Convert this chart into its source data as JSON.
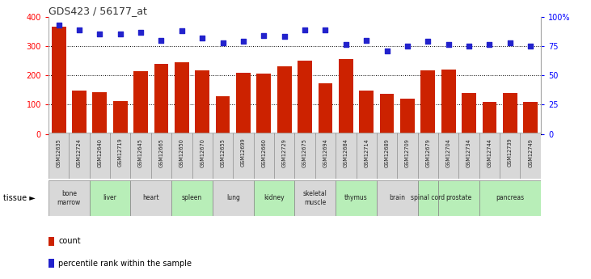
{
  "title": "GDS423 / 56177_at",
  "gsm_labels": [
    "GSM12635",
    "GSM12724",
    "GSM12640",
    "GSM12719",
    "GSM12645",
    "GSM12665",
    "GSM12650",
    "GSM12670",
    "GSM12655",
    "GSM12699",
    "GSM12660",
    "GSM12729",
    "GSM12675",
    "GSM12694",
    "GSM12684",
    "GSM12714",
    "GSM12689",
    "GSM12709",
    "GSM12679",
    "GSM12704",
    "GSM12734",
    "GSM12744",
    "GSM12739",
    "GSM12749"
  ],
  "bar_values": [
    365,
    148,
    143,
    112,
    213,
    240,
    245,
    218,
    130,
    210,
    205,
    230,
    250,
    173,
    255,
    148,
    137,
    120,
    218,
    220,
    140,
    110,
    140,
    110
  ],
  "pct_values": [
    93,
    89,
    85,
    85,
    87,
    80,
    88,
    82,
    78,
    79,
    84,
    83,
    89,
    89,
    76,
    80,
    71,
    75,
    79,
    76,
    75,
    76,
    78,
    75
  ],
  "bar_color": "#cc2200",
  "dot_color": "#2222cc",
  "grid_values": [
    100,
    200,
    300
  ],
  "tissues": [
    {
      "label": "bone\nmarrow",
      "start": 0,
      "end": 2,
      "color": "#d8d8d8"
    },
    {
      "label": "liver",
      "start": 2,
      "end": 4,
      "color": "#b8eeb8"
    },
    {
      "label": "heart",
      "start": 4,
      "end": 6,
      "color": "#d8d8d8"
    },
    {
      "label": "spleen",
      "start": 6,
      "end": 8,
      "color": "#b8eeb8"
    },
    {
      "label": "lung",
      "start": 8,
      "end": 10,
      "color": "#d8d8d8"
    },
    {
      "label": "kidney",
      "start": 10,
      "end": 12,
      "color": "#b8eeb8"
    },
    {
      "label": "skeletal\nmuscle",
      "start": 12,
      "end": 14,
      "color": "#d8d8d8"
    },
    {
      "label": "thymus",
      "start": 14,
      "end": 16,
      "color": "#b8eeb8"
    },
    {
      "label": "brain",
      "start": 16,
      "end": 18,
      "color": "#d8d8d8"
    },
    {
      "label": "spinal cord",
      "start": 18,
      "end": 19,
      "color": "#b8eeb8"
    },
    {
      "label": "prostate",
      "start": 19,
      "end": 21,
      "color": "#b8eeb8"
    },
    {
      "label": "pancreas",
      "start": 21,
      "end": 24,
      "color": "#b8eeb8"
    }
  ],
  "legend_count_label": "count",
  "legend_pct_label": "percentile rank within the sample"
}
